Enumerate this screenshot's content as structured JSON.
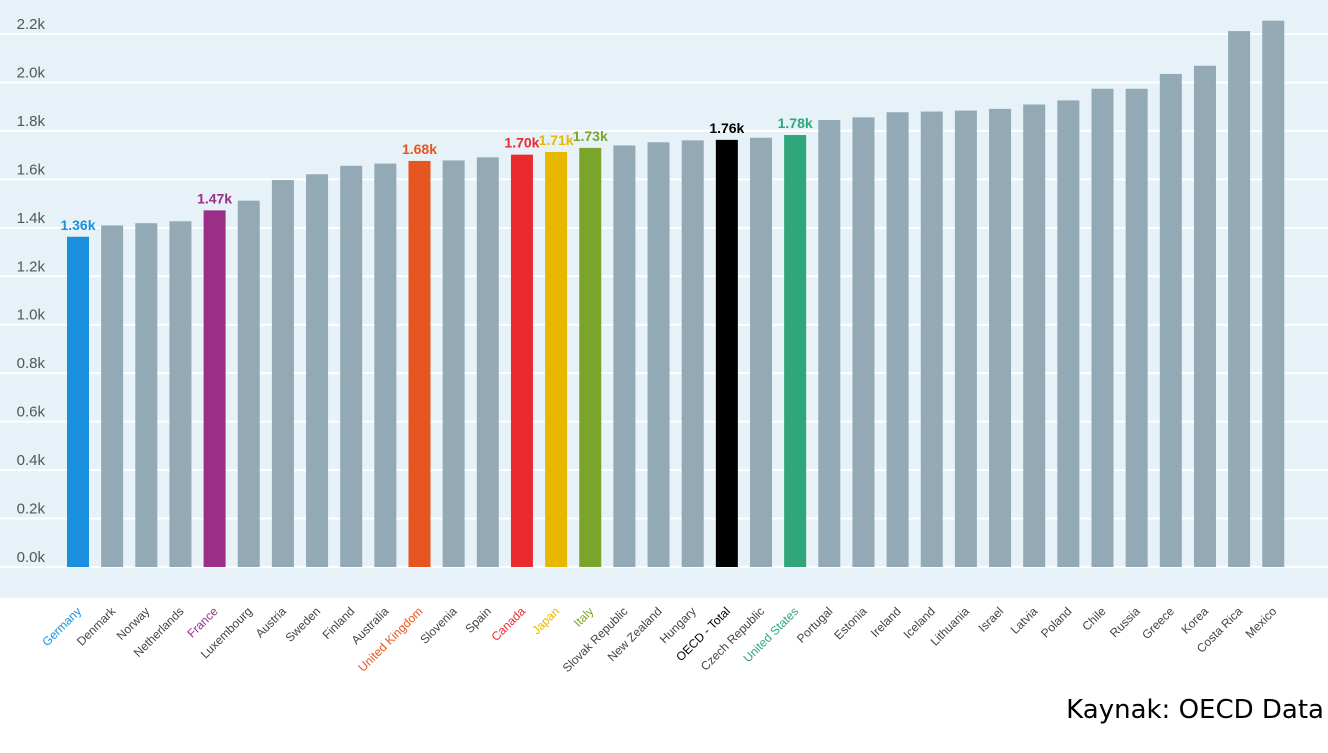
{
  "chart_data": {
    "type": "bar",
    "title": "",
    "xlabel": "",
    "ylabel": "",
    "ylim": [
      0,
      2200
    ],
    "yticks": [
      {
        "value": 0,
        "label": "0.0k"
      },
      {
        "value": 200,
        "label": "0.2k"
      },
      {
        "value": 400,
        "label": "0.4k"
      },
      {
        "value": 600,
        "label": "0.6k"
      },
      {
        "value": 800,
        "label": "0.8k"
      },
      {
        "value": 1000,
        "label": "1.0k"
      },
      {
        "value": 1200,
        "label": "1.2k"
      },
      {
        "value": 1400,
        "label": "1.4k"
      },
      {
        "value": 1600,
        "label": "1.6k"
      },
      {
        "value": 1800,
        "label": "1.8k"
      },
      {
        "value": 2000,
        "label": "2.0k"
      },
      {
        "value": 2200,
        "label": "2.2k"
      }
    ],
    "grid": true,
    "default_bar_color": "#93a9b6",
    "default_label_color": "#444444",
    "bars": [
      {
        "category": "Germany",
        "value": 1363,
        "color": "#1a8fdd",
        "data_label": "1.36k"
      },
      {
        "category": "Denmark",
        "value": 1410
      },
      {
        "category": "Norway",
        "value": 1419
      },
      {
        "category": "Netherlands",
        "value": 1427
      },
      {
        "category": "France",
        "value": 1472,
        "color": "#9b2f87",
        "data_label": "1.47k"
      },
      {
        "category": "Luxembourg",
        "value": 1512
      },
      {
        "category": "Austria",
        "value": 1597
      },
      {
        "category": "Sweden",
        "value": 1621
      },
      {
        "category": "Finland",
        "value": 1656
      },
      {
        "category": "Australia",
        "value": 1665
      },
      {
        "category": "United Kingdom",
        "value": 1676,
        "color": "#e6541f",
        "data_label": "1.68k"
      },
      {
        "category": "Slovenia",
        "value": 1678
      },
      {
        "category": "Spain",
        "value": 1691
      },
      {
        "category": "Canada",
        "value": 1702,
        "color": "#ea2a2f",
        "data_label": "1.70k"
      },
      {
        "category": "Japan",
        "value": 1713,
        "color": "#e8b800",
        "data_label": "1.71k"
      },
      {
        "category": "Italy",
        "value": 1730,
        "color": "#7ba52a",
        "data_label": "1.73k"
      },
      {
        "category": "Slovak Republic",
        "value": 1740
      },
      {
        "category": "New Zealand",
        "value": 1753
      },
      {
        "category": "Hungary",
        "value": 1761
      },
      {
        "category": "OECD - Total",
        "value": 1763,
        "color": "#000000",
        "data_label": "1.76k"
      },
      {
        "category": "Czech Republic",
        "value": 1772
      },
      {
        "category": "United States",
        "value": 1783,
        "color": "#2fa77b",
        "data_label": "1.78k"
      },
      {
        "category": "Portugal",
        "value": 1845
      },
      {
        "category": "Estonia",
        "value": 1856
      },
      {
        "category": "Ireland",
        "value": 1877
      },
      {
        "category": "Iceland",
        "value": 1880
      },
      {
        "category": "Lithuania",
        "value": 1884
      },
      {
        "category": "Israel",
        "value": 1891
      },
      {
        "category": "Latvia",
        "value": 1909
      },
      {
        "category": "Poland",
        "value": 1926
      },
      {
        "category": "Chile",
        "value": 1974
      },
      {
        "category": "Russia",
        "value": 1974
      },
      {
        "category": "Greece",
        "value": 2035
      },
      {
        "category": "Korea",
        "value": 2069
      },
      {
        "category": "Costa Rica",
        "value": 2212
      },
      {
        "category": "Mexico",
        "value": 2255
      }
    ],
    "source": "Kaynak: OECD Data"
  }
}
